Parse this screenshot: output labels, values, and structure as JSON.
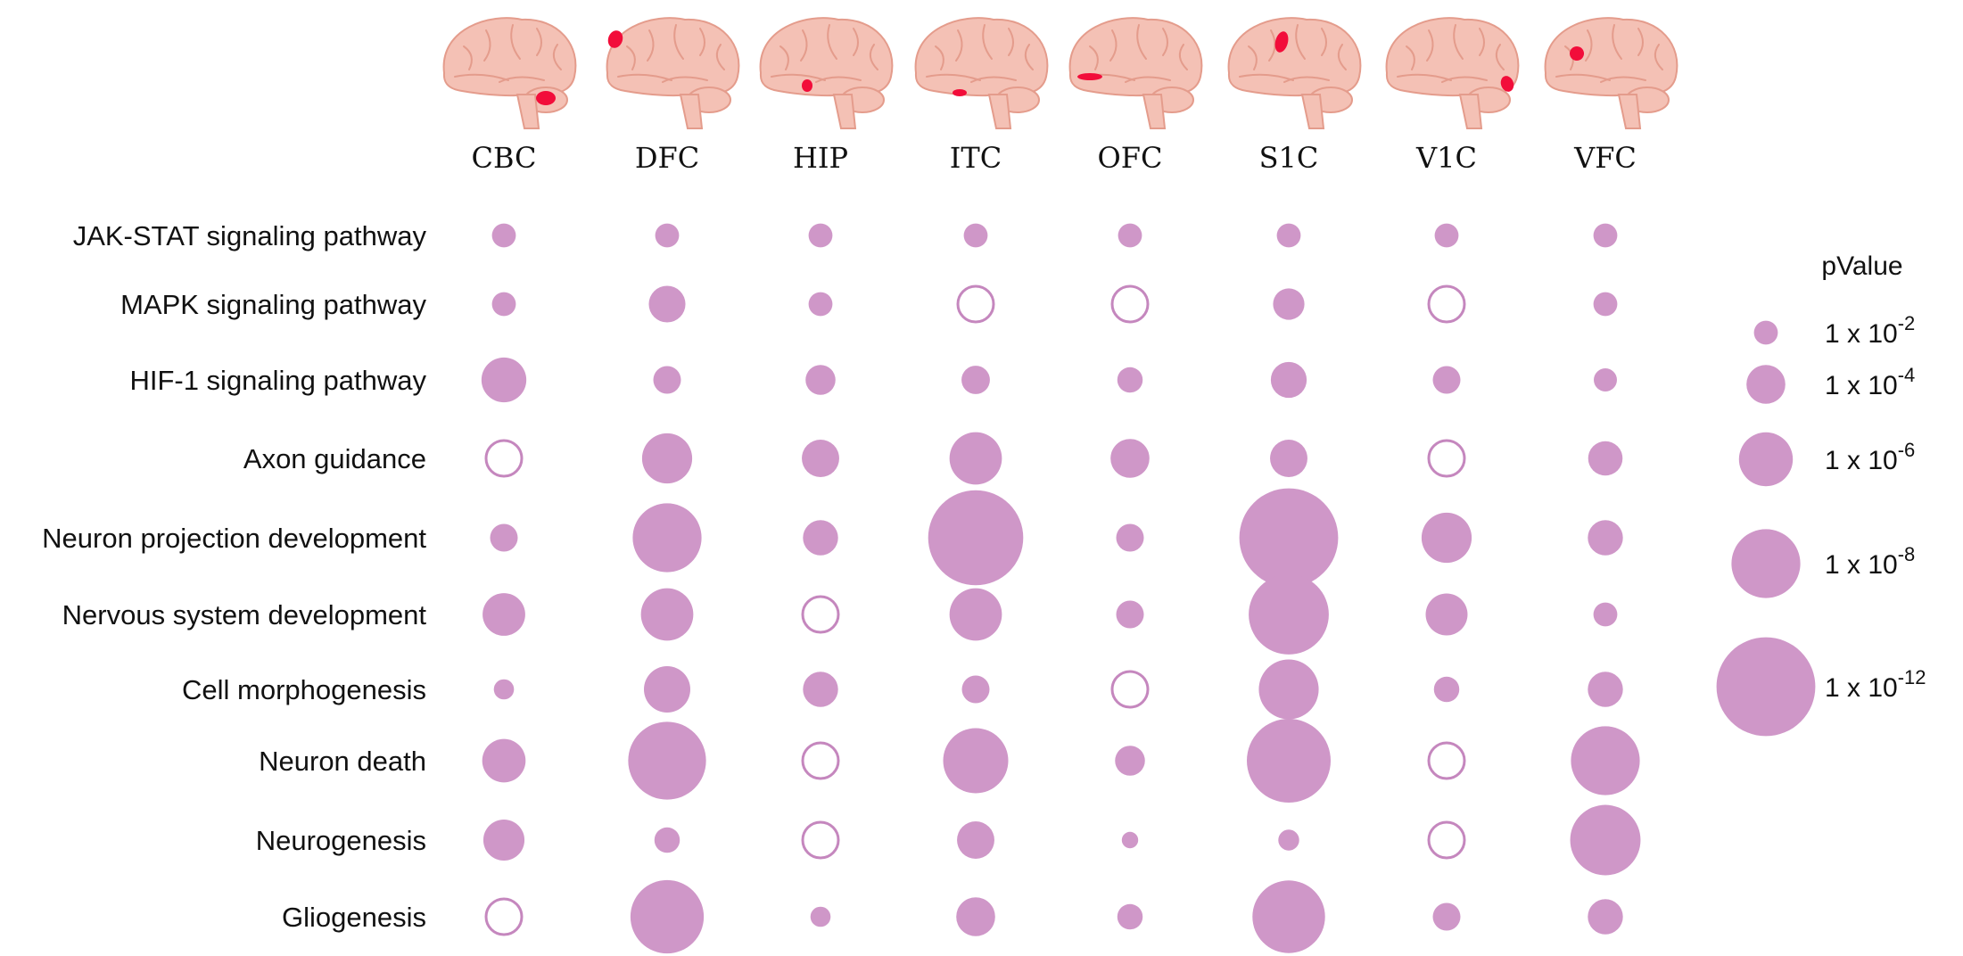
{
  "chart_data": {
    "type": "bubble",
    "columns": [
      "CBC",
      "DFC",
      "HIP",
      "ITC",
      "OFC",
      "S1C",
      "V1C",
      "VFC"
    ],
    "rows": [
      "JAK-STAT signaling pathway",
      "MAPK signaling pathway",
      "HIF-1 signaling pathway",
      "Axon guidance",
      "Neuron projection development",
      "Nervous system development",
      "Cell morphogenesis",
      "Neuron death",
      "Neurogenesis",
      "Gliogenesis"
    ],
    "neg_log10_pvalue": [
      [
        2.0,
        2.0,
        2.0,
        2.0,
        2.0,
        2.0,
        2.0,
        2.0
      ],
      [
        2.0,
        3.7,
        2.0,
        null,
        null,
        3.0,
        null,
        2.0
      ],
      [
        4.8,
        2.5,
        2.8,
        2.6,
        2.2,
        3.6,
        2.5,
        1.9
      ],
      [
        null,
        5.5,
        3.8,
        5.8,
        4.0,
        3.8,
        null,
        3.4
      ],
      [
        2.5,
        8.0,
        3.5,
        11.5,
        2.5,
        12.0,
        5.5,
        3.5
      ],
      [
        4.5,
        5.8,
        null,
        5.8,
        2.5,
        9.5,
        4.4,
        2.0
      ],
      [
        1.5,
        5.0,
        3.5,
        2.5,
        null,
        6.8,
        2.2,
        3.5
      ],
      [
        4.6,
        9.2,
        null,
        7.5,
        2.8,
        10.0,
        null,
        8.0
      ],
      [
        4.3,
        2.2,
        null,
        3.8,
        1.0,
        1.6,
        null,
        8.2
      ],
      [
        null,
        8.6,
        1.5,
        4.0,
        2.2,
        8.5,
        2.5,
        3.5
      ]
    ],
    "note": "null = open circle (no significant value)",
    "legend": {
      "title": "pValue",
      "entries": [
        {
          "base": "1 x 10",
          "exp": "-2",
          "neg_log10": 2
        },
        {
          "base": "1 x 10",
          "exp": "-4",
          "neg_log10": 4
        },
        {
          "base": "1 x 10",
          "exp": "-6",
          "neg_log10": 6
        },
        {
          "base": "1 x 10",
          "exp": "-8",
          "neg_log10": 8
        },
        {
          "base": "1 x 10",
          "exp": "-12",
          "neg_log10": 12
        }
      ]
    }
  },
  "colors": {
    "bubble": "#CF97C8",
    "bubble_outline": "#C587BE",
    "brain": "#F4C1B5",
    "brain_shadow": "#E49C8C",
    "brain_highlight": "#F20D3A",
    "text": "#111111"
  },
  "icons": [
    "brain-icon"
  ]
}
